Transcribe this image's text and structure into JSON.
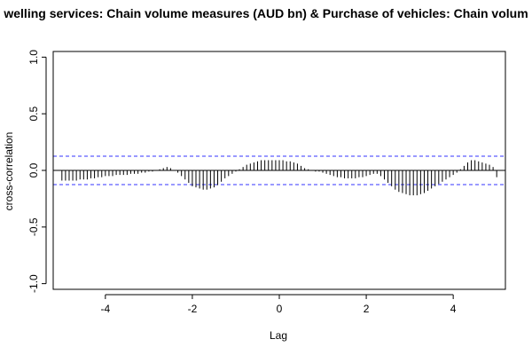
{
  "chart_data": {
    "type": "bar",
    "title": "welling services: Chain volume measures (AUD bn) & Purchase of vehicles: Chain volum",
    "xlabel": "Lag",
    "ylabel": "cross-correlation",
    "xlim": [
      -5.2,
      5.2
    ],
    "ylim": [
      -1.05,
      1.05
    ],
    "x_ticks": [
      -4,
      -2,
      0,
      2,
      4
    ],
    "y_ticks": [
      -1.0,
      -0.5,
      0.0,
      0.5,
      1.0
    ],
    "x_tick_labels": [
      "-4",
      "-2",
      "0",
      "2",
      "4"
    ],
    "y_tick_labels": [
      "-1.0",
      "-0.5",
      "0.0",
      "0.5",
      "1.0"
    ],
    "confidence_bound": 0.125,
    "colors": {
      "bars": "#000000",
      "zero_line": "#000000",
      "confidence": "#3333ff"
    },
    "lags": [
      -5.0,
      -4.9167,
      -4.8333,
      -4.75,
      -4.6667,
      -4.5833,
      -4.5,
      -4.4167,
      -4.3333,
      -4.25,
      -4.1667,
      -4.0833,
      -4.0,
      -3.9167,
      -3.8333,
      -3.75,
      -3.6667,
      -3.5833,
      -3.5,
      -3.4167,
      -3.3333,
      -3.25,
      -3.1667,
      -3.0833,
      -3.0,
      -2.9167,
      -2.8333,
      -2.75,
      -2.6667,
      -2.5833,
      -2.5,
      -2.4167,
      -2.3333,
      -2.25,
      -2.1667,
      -2.0833,
      -2.0,
      -1.9167,
      -1.8333,
      -1.75,
      -1.6667,
      -1.5833,
      -1.5,
      -1.4167,
      -1.3333,
      -1.25,
      -1.1667,
      -1.0833,
      -1.0,
      -0.9167,
      -0.8333,
      -0.75,
      -0.6667,
      -0.5833,
      -0.5,
      -0.4167,
      -0.3333,
      -0.25,
      -0.1667,
      -0.0833,
      0.0,
      0.0833,
      0.1667,
      0.25,
      0.3333,
      0.4167,
      0.5,
      0.5833,
      0.6667,
      0.75,
      0.8333,
      0.9167,
      1.0,
      1.0833,
      1.1667,
      1.25,
      1.3333,
      1.4167,
      1.5,
      1.5833,
      1.6667,
      1.75,
      1.8333,
      1.9167,
      2.0,
      2.0833,
      2.1667,
      2.25,
      2.3333,
      2.4167,
      2.5,
      2.5833,
      2.6667,
      2.75,
      2.8333,
      2.9167,
      3.0,
      3.0833,
      3.1667,
      3.25,
      3.3333,
      3.4167,
      3.5,
      3.5833,
      3.6667,
      3.75,
      3.8333,
      3.9167,
      4.0,
      4.0833,
      4.1667,
      4.25,
      4.3333,
      4.4167,
      4.5,
      4.5833,
      4.6667,
      4.75,
      4.8333,
      4.9167,
      5.0
    ],
    "values": [
      -0.09,
      -0.09,
      -0.09,
      -0.09,
      -0.09,
      -0.08,
      -0.08,
      -0.08,
      -0.07,
      -0.07,
      -0.06,
      -0.06,
      -0.05,
      -0.05,
      -0.05,
      -0.04,
      -0.04,
      -0.04,
      -0.04,
      -0.03,
      -0.03,
      -0.03,
      -0.02,
      -0.02,
      -0.01,
      -0.01,
      0.0,
      0.01,
      0.02,
      0.03,
      0.02,
      0.0,
      -0.02,
      -0.05,
      -0.08,
      -0.11,
      -0.14,
      -0.15,
      -0.16,
      -0.17,
      -0.17,
      -0.16,
      -0.15,
      -0.13,
      -0.1,
      -0.07,
      -0.05,
      -0.03,
      -0.01,
      0.01,
      0.03,
      0.05,
      0.06,
      0.07,
      0.08,
      0.09,
      0.09,
      0.09,
      0.09,
      0.09,
      0.09,
      0.09,
      0.08,
      0.08,
      0.07,
      0.06,
      0.04,
      0.02,
      0.01,
      0.0,
      -0.01,
      -0.01,
      -0.02,
      -0.03,
      -0.04,
      -0.05,
      -0.06,
      -0.06,
      -0.07,
      -0.07,
      -0.07,
      -0.07,
      -0.06,
      -0.06,
      -0.05,
      -0.04,
      -0.03,
      -0.03,
      -0.05,
      -0.08,
      -0.11,
      -0.14,
      -0.17,
      -0.19,
      -0.2,
      -0.21,
      -0.22,
      -0.22,
      -0.22,
      -0.21,
      -0.2,
      -0.18,
      -0.16,
      -0.14,
      -0.12,
      -0.1,
      -0.08,
      -0.06,
      -0.04,
      -0.02,
      0.01,
      0.04,
      0.07,
      0.09,
      0.09,
      0.08,
      0.07,
      0.06,
      0.05,
      0.03,
      -0.06
    ]
  }
}
